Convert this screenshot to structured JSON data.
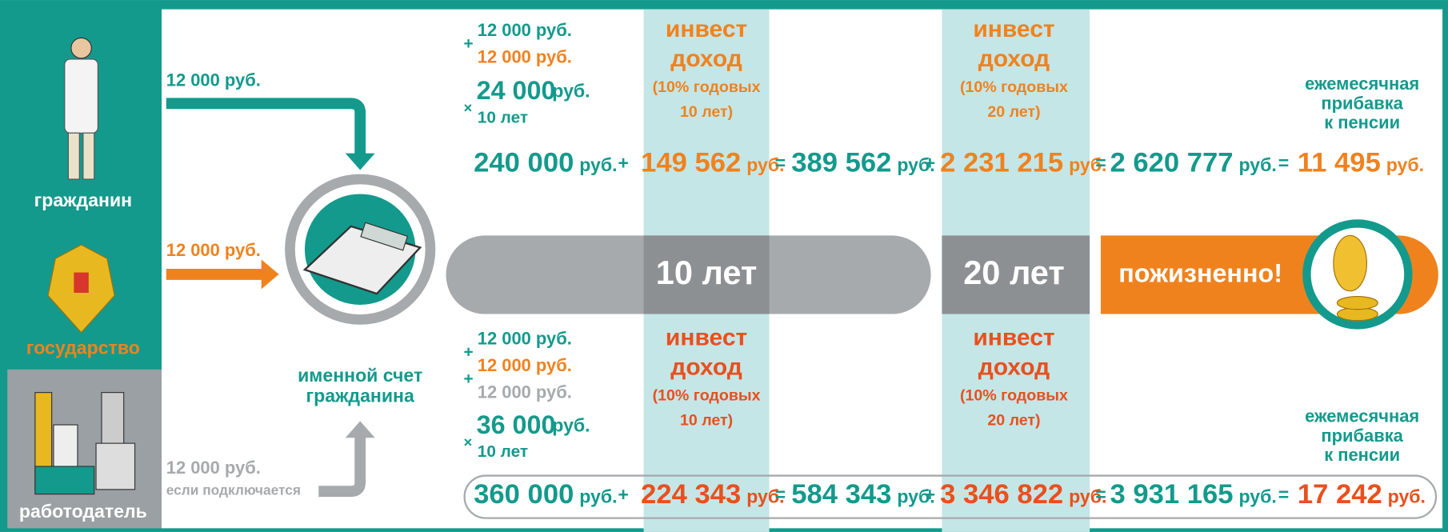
{
  "actors": [
    {
      "label": "гражданин",
      "contribution": "12 000 руб."
    },
    {
      "label": "государство",
      "contribution": "12 000 руб."
    },
    {
      "label": "работодатель",
      "contribution": "12 000 руб.",
      "note": "если подключается"
    }
  ],
  "account": [
    "именной счет",
    "гражданина"
  ],
  "timeline": [
    "10 лет",
    "20 лет",
    "пожизненно!"
  ],
  "unit": "руб.",
  "invest": [
    {
      "line1": "инвест",
      "line2": "доход",
      "rate": "(10% годовых",
      "term": "10 лет)"
    },
    {
      "line1": "инвест",
      "line2": "доход",
      "rate": "(10% годовых",
      "term": "20 лет)"
    }
  ],
  "monthly": [
    "ежемесячная",
    "прибавка",
    "к пенсии"
  ],
  "scenarios": [
    {
      "addends": [
        "12 000 руб.",
        "12 000 руб."
      ],
      "plus": "+",
      "times": "×",
      "total": "24 000",
      "years": "10 лет",
      "terms": [
        "240 000",
        "149 562",
        "389 562",
        "2 231 215",
        "2 620 777",
        "11 495"
      ],
      "operators": [
        "+",
        "=",
        "+",
        "=",
        "="
      ]
    },
    {
      "addends": [
        "12 000 руб.",
        "12 000 руб.",
        "12 000 руб."
      ],
      "plus": "+",
      "times": "×",
      "total": "36 000",
      "years": "10 лет",
      "terms": [
        "360 000",
        "224 343",
        "584 343",
        "3 346 822",
        "3 931 165",
        "17 242"
      ],
      "operators": [
        "+",
        "=",
        "+",
        "=",
        "="
      ]
    }
  ]
}
